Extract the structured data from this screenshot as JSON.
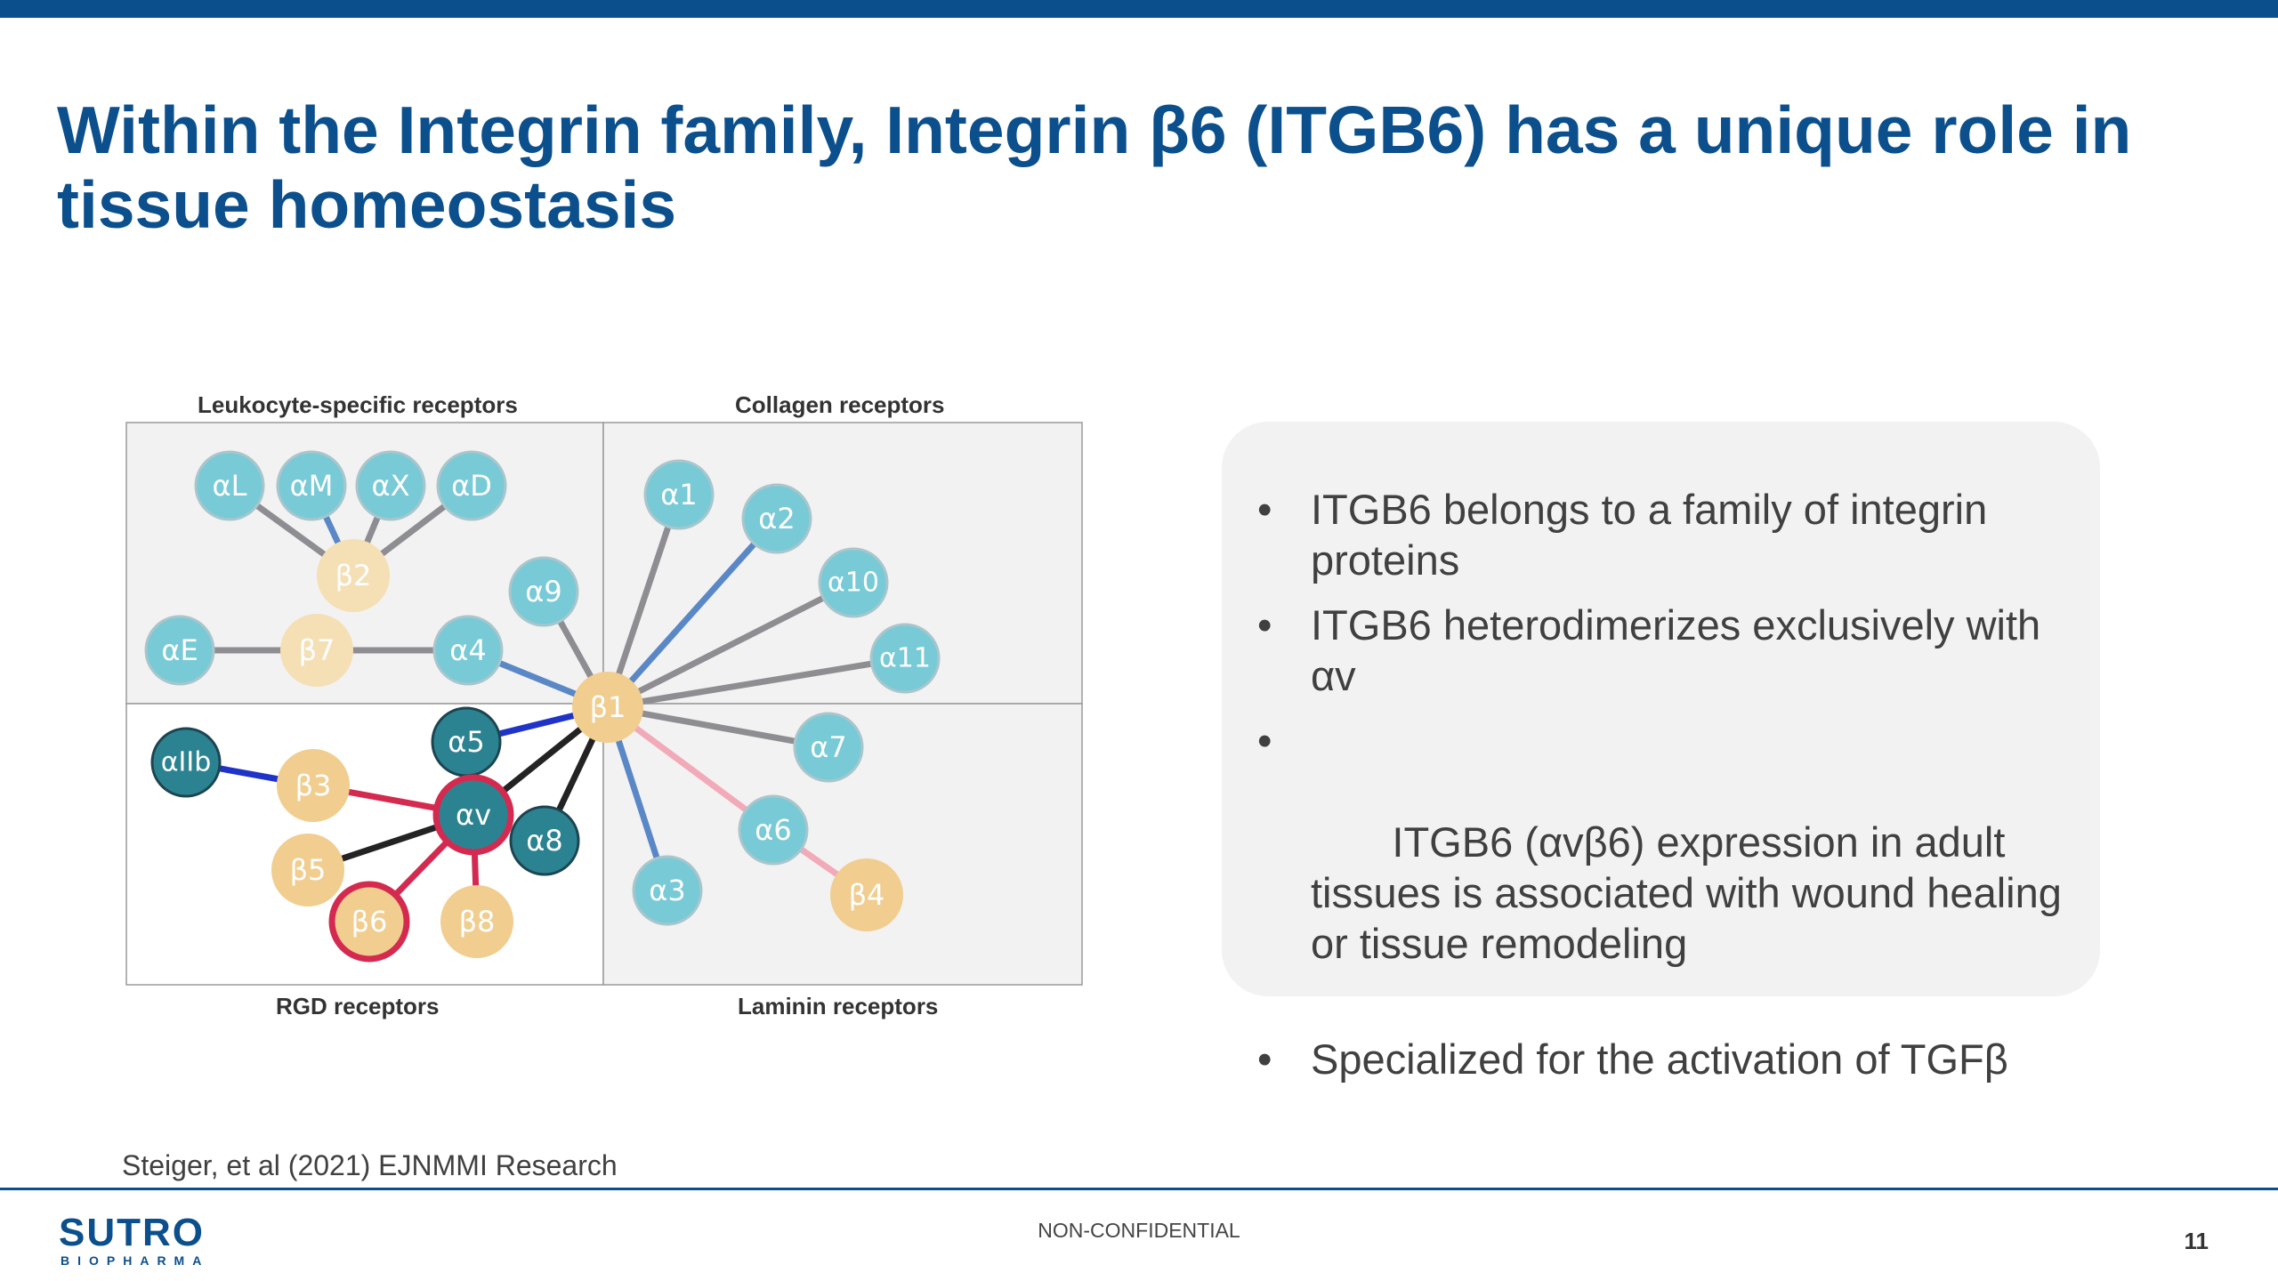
{
  "title": "Within the Integrin family, Integrin β6 (ITGB6) has a unique role in tissue homeostasis",
  "diagram": {
    "labels": {
      "top_left": "Leukocyte-specific receptors",
      "top_right": "Collagen receptors",
      "bottom_left": "RGD receptors",
      "bottom_right": "Laminin receptors"
    },
    "nodes": {
      "aL": "αL",
      "aM": "αM",
      "aX": "αX",
      "aD": "αD",
      "b2": "β2",
      "b7": "β7",
      "aE": "αE",
      "a4": "α4",
      "a9": "α9",
      "b1": "β1",
      "a1": "α1",
      "a2": "α2",
      "a10": "α10",
      "a11": "α11",
      "a7": "α7",
      "a6": "α6",
      "b4": "β4",
      "a3": "α3",
      "a5": "α5",
      "av": "αv",
      "a8": "α8",
      "aIIb": "αIIb",
      "b3": "β3",
      "b5": "β5",
      "b6": "β6",
      "b8": "β8"
    },
    "colors": {
      "light_blue_node": "#78cad6",
      "beta_node": "#f1cd8f",
      "dark_teal_node": "#2b8391",
      "gray_edge": "#8e8e92",
      "blue_edge": "#5a87c6",
      "dark_blue_edge": "#1f33c8",
      "black_edge": "#232323",
      "red_edge": "#d42a50",
      "pink_edge": "#f2a9b8",
      "panel_bg": "#f2f2f2"
    }
  },
  "bullets": [
    "ITGB6 belongs to a family of integrin proteins",
    "ITGB6 heterodimerizes exclusively with αv",
    " ITGB6 (αvβ6) expression in adult tissues is associated with wound healing or tissue remodeling",
    "Specialized for the activation of TGFβ"
  ],
  "bullet_symbol": "•",
  "citation": "Steiger, et al (2021) EJNMMI Research",
  "footer": {
    "logo_main": "SUTRO",
    "logo_sub": "BIOPHARMA",
    "center_text": "NON-CONFIDENTIAL",
    "page_number": "11"
  }
}
